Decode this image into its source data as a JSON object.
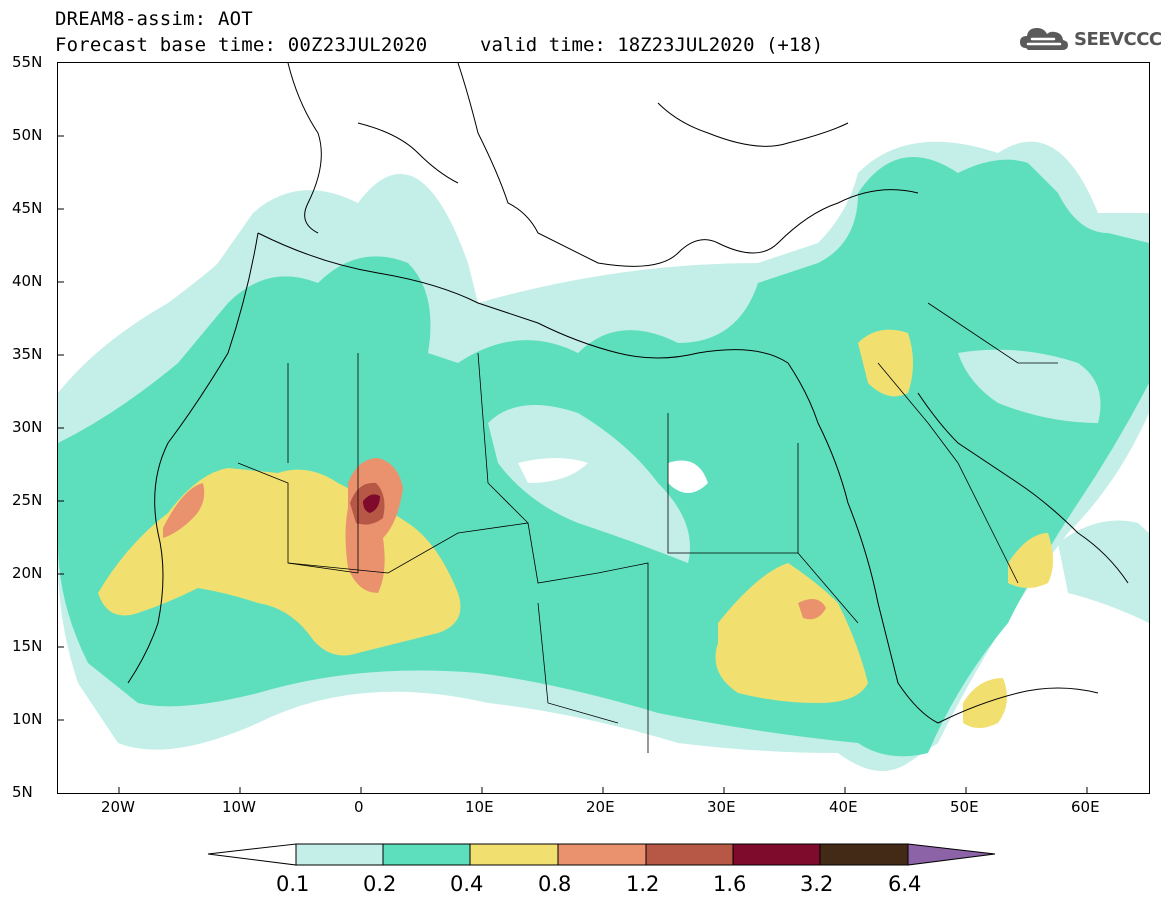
{
  "header": {
    "title": "DREAM8-assim: AOT",
    "base_time": "Forecast base time: 00Z23JUL2020",
    "valid_time": "valid time: 18Z23JUL2020 (+18)"
  },
  "logo": {
    "text": "SEEVCCC",
    "icon": "cloud-icon"
  },
  "map": {
    "region": "North Africa, Middle East and Europe",
    "variable": "AOT",
    "lat_range": [
      5,
      55
    ],
    "lon_range": [
      -25,
      65
    ],
    "lat_ticks": [
      "55N",
      "50N",
      "45N",
      "40N",
      "35N",
      "30N",
      "25N",
      "20N",
      "15N",
      "10N",
      "5N"
    ],
    "lon_ticks": [
      "20W",
      "10W",
      "0",
      "10E",
      "20E",
      "30E",
      "40E",
      "50E",
      "60E"
    ]
  },
  "colorbar": {
    "labels": [
      "0.1",
      "0.2",
      "0.4",
      "0.8",
      "1.2",
      "1.6",
      "3.2",
      "6.4"
    ],
    "colors": [
      "#ffffff",
      "#c4efe8",
      "#5ddfbd",
      "#f1e070",
      "#e9926d",
      "#b65845",
      "#7e0a2c",
      "#422a17",
      "#8b63a6"
    ]
  }
}
